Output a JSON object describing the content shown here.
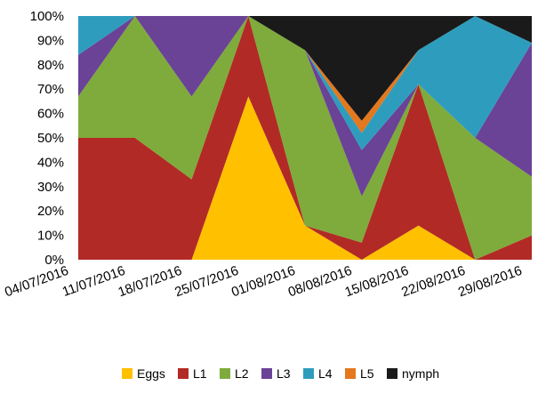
{
  "chart_data": {
    "type": "area",
    "stacked": "percent",
    "categories": [
      "04/07/2016",
      "11/07/2016",
      "18/07/2016",
      "25/07/2016",
      "01/08/2016",
      "08/08/2016",
      "15/08/2016",
      "22/08/2016",
      "29/08/2016"
    ],
    "series": [
      {
        "name": "Eggs",
        "color": "#FFC000",
        "values": [
          0,
          0,
          0,
          67,
          14,
          0,
          14,
          0,
          0
        ]
      },
      {
        "name": "L1",
        "color": "#B22A25",
        "values": [
          50,
          50,
          33,
          33,
          0,
          7,
          58,
          0,
          10
        ]
      },
      {
        "name": "L2",
        "color": "#7EAB3C",
        "values": [
          17,
          50,
          34,
          0,
          72,
          19,
          0,
          50,
          24
        ]
      },
      {
        "name": "L3",
        "color": "#6A4296",
        "values": [
          17,
          0,
          33,
          0,
          0,
          19,
          0,
          0,
          55
        ]
      },
      {
        "name": "L4",
        "color": "#2E9DBD",
        "values": [
          16,
          0,
          0,
          0,
          0,
          7,
          14,
          50,
          0
        ]
      },
      {
        "name": "L5",
        "color": "#E3781F",
        "values": [
          0,
          0,
          0,
          0,
          0,
          5,
          0,
          0,
          0
        ]
      },
      {
        "name": "nymph",
        "color": "#1A1A1A",
        "values": [
          0,
          0,
          0,
          0,
          14,
          43,
          14,
          0,
          11
        ]
      }
    ],
    "y_ticks": [
      "0%",
      "10%",
      "20%",
      "30%",
      "40%",
      "50%",
      "60%",
      "70%",
      "80%",
      "90%",
      "100%"
    ],
    "ylim": [
      0,
      100
    ],
    "grid": false,
    "legend_position": "bottom"
  }
}
